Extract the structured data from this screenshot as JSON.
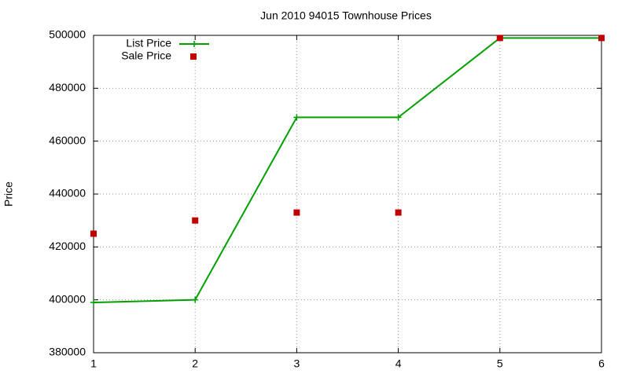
{
  "chart_data": {
    "type": "line",
    "title": "Jun 2010 94015 Townhouse Prices",
    "y_label": "Price",
    "x": [
      1,
      2,
      3,
      4,
      5,
      6
    ],
    "series": [
      {
        "name": "List Price",
        "color": "#00a000",
        "mode": "linespoints",
        "values": [
          399000,
          400000,
          469000,
          469000,
          499000,
          499000
        ]
      },
      {
        "name": "Sale Price",
        "color": "#c00000",
        "mode": "points",
        "values": [
          425000,
          430000,
          433000,
          433000,
          499000,
          499000
        ]
      }
    ],
    "xlim": [
      1,
      6
    ],
    "xticks": [
      1,
      2,
      3,
      4,
      5,
      6
    ],
    "ylim": [
      380000,
      500000
    ],
    "yticks": [
      380000,
      400000,
      420000,
      440000,
      460000,
      480000,
      500000
    ],
    "grid": true,
    "legend": "top-left"
  }
}
